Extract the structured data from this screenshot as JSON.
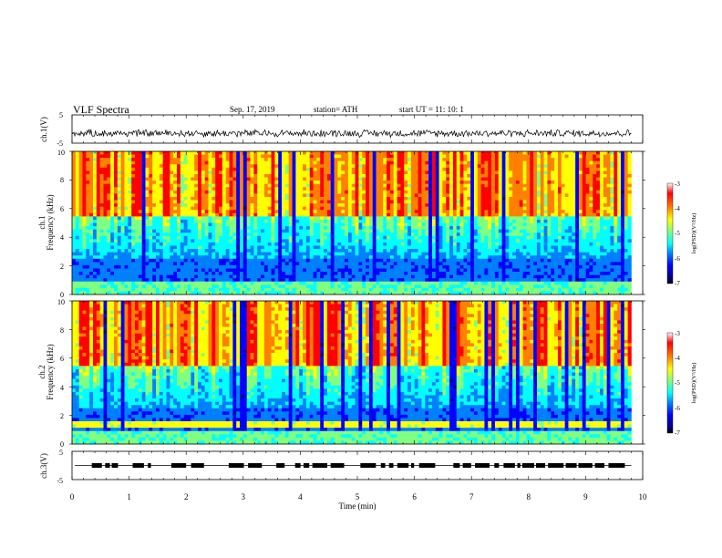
{
  "header": {
    "title": "VLF  Spectra",
    "date": "Sep. 17, 2019",
    "station": "station= ATH",
    "start": "start  UT  =    11: 10: 1"
  },
  "chart_data": [
    {
      "type": "line",
      "name": "ch1-waveform",
      "ylabel": "ch.1(V)",
      "ylim": [
        -5,
        5
      ],
      "yticks": [
        "5",
        "-5"
      ],
      "x_range": [
        0,
        10
      ],
      "x_end_min": 9.8,
      "approx_level_v": -1.5,
      "approx_amplitude_v": 1.5
    },
    {
      "type": "heatmap",
      "name": "ch1-spectrogram",
      "ylabel": "ch.1",
      "ylabel2": "Frequency  (kHz)",
      "ylim": [
        0,
        10
      ],
      "yticks": [
        "0",
        "2",
        "4",
        "6",
        "8",
        "10"
      ],
      "x_range": [
        0,
        10
      ],
      "x_end_min": 9.8,
      "colorbar": {
        "label": "log(PSD)(V²/Hz)",
        "range": [
          -7,
          -3
        ],
        "ticks": [
          "-3",
          "-4",
          "-5",
          "-6",
          "-7"
        ]
      }
    },
    {
      "type": "heatmap",
      "name": "ch2-spectrogram",
      "ylabel": "ch.2",
      "ylabel2": "Frequency  (kHz)",
      "ylim": [
        0,
        10
      ],
      "yticks": [
        "0",
        "2",
        "4",
        "6",
        "8",
        "10"
      ],
      "x_range": [
        0,
        10
      ],
      "x_end_min": 9.8,
      "colorbar": {
        "label": "log(PSD)(V²/Hz)",
        "range": [
          -7,
          -3
        ],
        "ticks": [
          "-3",
          "-4",
          "-5",
          "-6",
          "-7"
        ]
      }
    },
    {
      "type": "line",
      "name": "ch3-signal",
      "ylabel": "ch.3(V)",
      "ylim": [
        -5,
        5
      ],
      "yticks": [
        "5",
        "-5"
      ],
      "x_range": [
        0,
        10
      ],
      "x_end_min": 9.8,
      "approx_level_v": 0
    }
  ],
  "xaxis": {
    "label": "Time  (min)",
    "ticks": [
      "0",
      "1",
      "2",
      "3",
      "4",
      "5",
      "6",
      "7",
      "8",
      "9",
      "10"
    ]
  },
  "colors": {
    "jet": [
      "#000000",
      "#00008f",
      "#0000ff",
      "#0080ff",
      "#00ffff",
      "#80ff80",
      "#ffff00",
      "#ff8000",
      "#ff0000",
      "#ffffff"
    ]
  }
}
